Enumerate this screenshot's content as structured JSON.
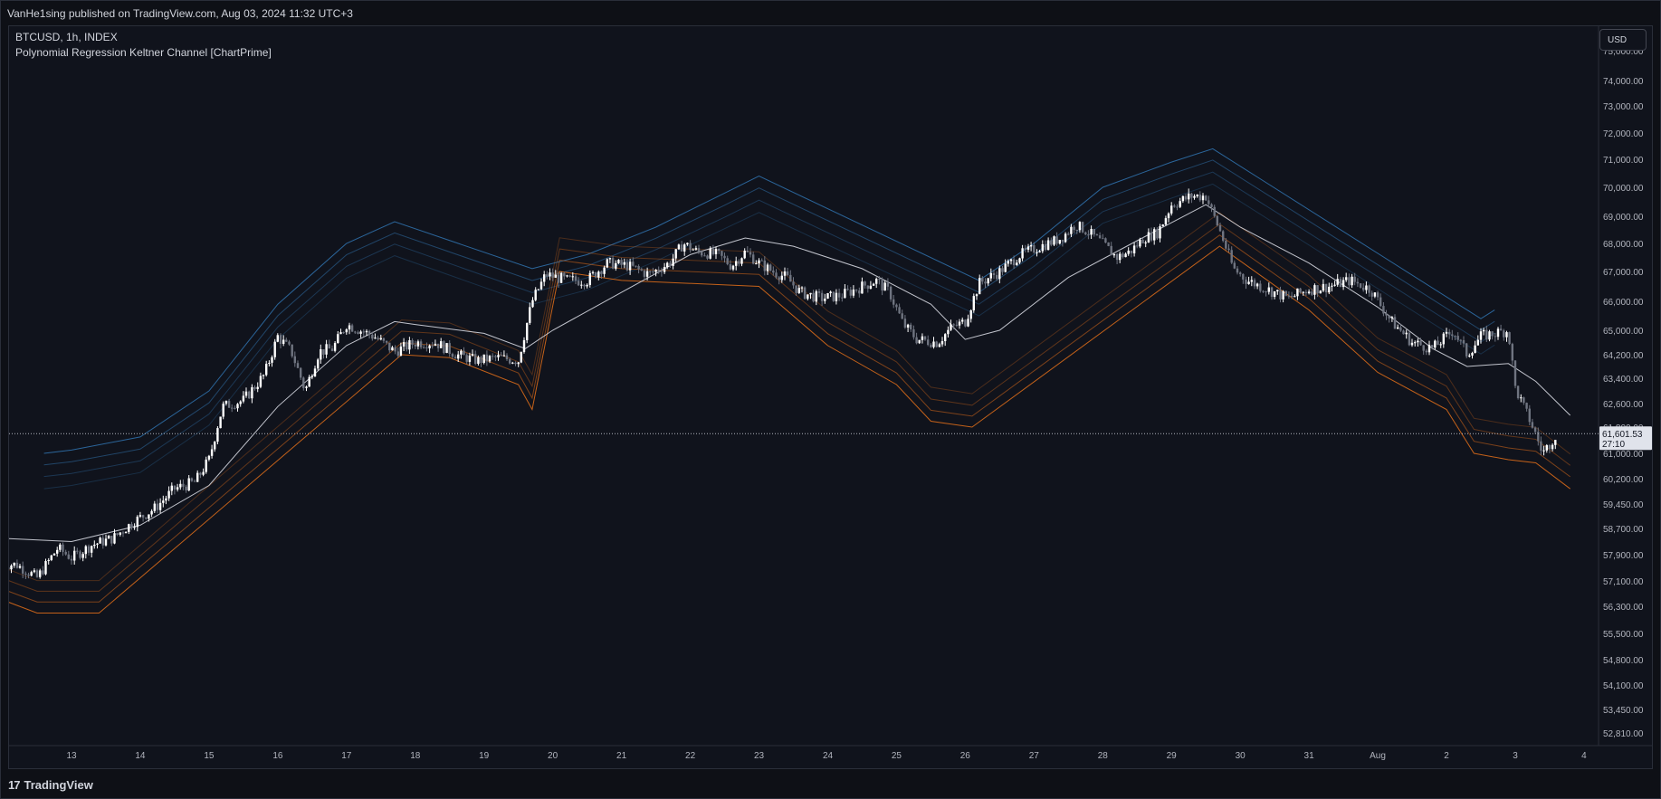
{
  "header": {
    "published_text": "VanHe1sing published on TradingView.com, Aug 03, 2024 11:32 UTC+3"
  },
  "legend": {
    "symbol_line": "BTCUSD, 1h, INDEX",
    "indicator_line": "Polynomial Regression Keltner Channel [ChartPrime]"
  },
  "price_scale": {
    "currency": "USD",
    "labels": [
      "75,000.00",
      "74,000.00",
      "73,000.00",
      "72,000.00",
      "71,000.00",
      "70,000.00",
      "69,000.00",
      "68,000.00",
      "67,000.00",
      "66,000.00",
      "65,000.00",
      "64,200.00",
      "63,400.00",
      "62,600.00",
      "61,800.00",
      "61,000.00",
      "60,200.00",
      "59,450.00",
      "58,700.00",
      "57,900.00",
      "57,100.00",
      "56,300.00",
      "55,500.00",
      "54,800.00",
      "54,100.00",
      "53,450.00",
      "52,810.00"
    ],
    "last_price": "61,601.53",
    "countdown": "27:10"
  },
  "time_axis": {
    "labels": [
      "13",
      "14",
      "15",
      "16",
      "17",
      "18",
      "19",
      "20",
      "21",
      "22",
      "23",
      "24",
      "25",
      "26",
      "27",
      "28",
      "29",
      "30",
      "31",
      "Aug",
      "2",
      "3",
      "4"
    ]
  },
  "footer": {
    "brand": "TradingView",
    "logo_glyph": "17"
  },
  "colors": {
    "background": "#10131c",
    "up_candle": "#ffffff",
    "down_candle": "#6f7480",
    "upper_band": "#2f6fa8",
    "lower_band": "#d86a1a",
    "regression": "#e0e3eb",
    "price_line": "#b2b5be"
  },
  "chart_data": {
    "type": "candlestick",
    "symbol": "BTCUSD",
    "timeframe": "1h",
    "x_unit": "day",
    "anchor_day_numbers": [
      13,
      14,
      15,
      16,
      17,
      18,
      19,
      20,
      21,
      22,
      23,
      24,
      25,
      26,
      27,
      28,
      29,
      30,
      31,
      32,
      33,
      34,
      35
    ],
    "close_series": [
      [
        12.2,
        57600
      ],
      [
        12.5,
        57200
      ],
      [
        12.8,
        58100
      ],
      [
        13.0,
        57800
      ],
      [
        13.3,
        58200
      ],
      [
        13.6,
        58400
      ],
      [
        13.9,
        58900
      ],
      [
        14.2,
        59300
      ],
      [
        14.5,
        59900
      ],
      [
        14.8,
        60100
      ],
      [
        15.0,
        60800
      ],
      [
        15.2,
        62500
      ],
      [
        15.5,
        62700
      ],
      [
        15.8,
        63500
      ],
      [
        16.0,
        64800
      ],
      [
        16.2,
        64300
      ],
      [
        16.4,
        63000
      ],
      [
        16.6,
        64300
      ],
      [
        16.8,
        64400
      ],
      [
        17.0,
        65200
      ],
      [
        17.2,
        65000
      ],
      [
        17.4,
        64800
      ],
      [
        17.7,
        64300
      ],
      [
        18.0,
        64600
      ],
      [
        18.3,
        64600
      ],
      [
        18.6,
        64200
      ],
      [
        18.9,
        64000
      ],
      [
        19.2,
        64100
      ],
      [
        19.5,
        64000
      ],
      [
        19.7,
        66000
      ],
      [
        19.9,
        66900
      ],
      [
        20.2,
        66700
      ],
      [
        20.5,
        66700
      ],
      [
        20.8,
        67300
      ],
      [
        21.1,
        67200
      ],
      [
        21.4,
        66900
      ],
      [
        21.7,
        67300
      ],
      [
        21.9,
        68000
      ],
      [
        22.1,
        67700
      ],
      [
        22.4,
        67600
      ],
      [
        22.6,
        67200
      ],
      [
        22.8,
        67700
      ],
      [
        23.0,
        67300
      ],
      [
        23.2,
        67000
      ],
      [
        23.4,
        66800
      ],
      [
        23.6,
        66300
      ],
      [
        23.9,
        66100
      ],
      [
        24.2,
        66200
      ],
      [
        24.5,
        66500
      ],
      [
        24.7,
        66700
      ],
      [
        24.9,
        66300
      ],
      [
        25.1,
        65200
      ],
      [
        25.3,
        64700
      ],
      [
        25.6,
        64600
      ],
      [
        25.8,
        65100
      ],
      [
        26.0,
        65300
      ],
      [
        26.2,
        66600
      ],
      [
        26.5,
        67000
      ],
      [
        26.8,
        67600
      ],
      [
        27.1,
        67900
      ],
      [
        27.4,
        68200
      ],
      [
        27.6,
        68700
      ],
      [
        27.8,
        68400
      ],
      [
        28.0,
        68000
      ],
      [
        28.2,
        67500
      ],
      [
        28.4,
        67700
      ],
      [
        28.6,
        68200
      ],
      [
        28.8,
        68400
      ],
      [
        29.0,
        69400
      ],
      [
        29.3,
        69700
      ],
      [
        29.5,
        69700
      ],
      [
        29.7,
        68500
      ],
      [
        29.9,
        67100
      ],
      [
        30.1,
        66700
      ],
      [
        30.4,
        66400
      ],
      [
        30.7,
        66100
      ],
      [
        31.0,
        66400
      ],
      [
        31.3,
        66500
      ],
      [
        31.6,
        66700
      ],
      [
        31.9,
        66400
      ],
      [
        32.2,
        65300
      ],
      [
        32.5,
        64600
      ],
      [
        32.8,
        64400
      ],
      [
        33.1,
        65000
      ],
      [
        33.3,
        64200
      ],
      [
        33.5,
        64800
      ],
      [
        33.7,
        64900
      ],
      [
        33.9,
        65000
      ],
      [
        34.0,
        63100
      ],
      [
        34.2,
        62100
      ],
      [
        34.4,
        61000
      ],
      [
        34.6,
        61600
      ]
    ],
    "regression_series": [
      [
        12.0,
        58400
      ],
      [
        13.0,
        58300
      ],
      [
        14.0,
        58800
      ],
      [
        15.0,
        60000
      ],
      [
        16.0,
        62500
      ],
      [
        17.0,
        64500
      ],
      [
        17.7,
        65300
      ],
      [
        18.0,
        65200
      ],
      [
        19.0,
        64900
      ],
      [
        19.6,
        64400
      ],
      [
        20.0,
        65000
      ],
      [
        21.0,
        66300
      ],
      [
        22.0,
        67600
      ],
      [
        22.8,
        68200
      ],
      [
        23.5,
        67900
      ],
      [
        24.5,
        67100
      ],
      [
        25.5,
        65900
      ],
      [
        26.0,
        64700
      ],
      [
        26.5,
        65000
      ],
      [
        27.5,
        66800
      ],
      [
        28.5,
        68100
      ],
      [
        29.5,
        69400
      ],
      [
        30.0,
        68600
      ],
      [
        31.0,
        67300
      ],
      [
        32.0,
        65800
      ],
      [
        32.8,
        64400
      ],
      [
        33.3,
        63800
      ],
      [
        33.9,
        63900
      ],
      [
        34.3,
        63300
      ],
      [
        34.8,
        62200
      ]
    ],
    "upper_band_series": [
      [
        12.6,
        61000
      ],
      [
        13.0,
        61100
      ],
      [
        14.0,
        61500
      ],
      [
        15.0,
        63000
      ],
      [
        16.0,
        65900
      ],
      [
        17.0,
        68000
      ],
      [
        17.7,
        68800
      ],
      [
        19.7,
        67100
      ],
      [
        20.5,
        67600
      ],
      [
        21.5,
        68600
      ],
      [
        22.5,
        69800
      ],
      [
        23.0,
        70400
      ],
      [
        26.2,
        66700
      ],
      [
        27.0,
        68000
      ],
      [
        28.0,
        70000
      ],
      [
        29.0,
        70900
      ],
      [
        29.6,
        71400
      ],
      [
        33.5,
        65400
      ],
      [
        33.7,
        65700
      ]
    ],
    "lower_band_series": [
      [
        12.0,
        56500
      ],
      [
        12.5,
        56100
      ],
      [
        13.0,
        56100
      ],
      [
        13.4,
        56100
      ],
      [
        17.8,
        64200
      ],
      [
        18.5,
        64100
      ],
      [
        19.5,
        63200
      ],
      [
        19.7,
        62400
      ],
      [
        20.1,
        67000
      ],
      [
        21.0,
        66700
      ],
      [
        23.0,
        66500
      ],
      [
        24.0,
        64500
      ],
      [
        25.0,
        63200
      ],
      [
        25.5,
        62000
      ],
      [
        26.1,
        61800
      ],
      [
        29.7,
        67900
      ],
      [
        31.0,
        65700
      ],
      [
        32.0,
        63600
      ],
      [
        33.0,
        62400
      ],
      [
        33.4,
        61000
      ],
      [
        33.9,
        60800
      ],
      [
        34.3,
        60700
      ],
      [
        34.8,
        59900
      ]
    ],
    "y_axis": {
      "min": 52810,
      "max": 75000,
      "scale": "log",
      "gridlines": false
    },
    "last_price": 61601.53
  }
}
